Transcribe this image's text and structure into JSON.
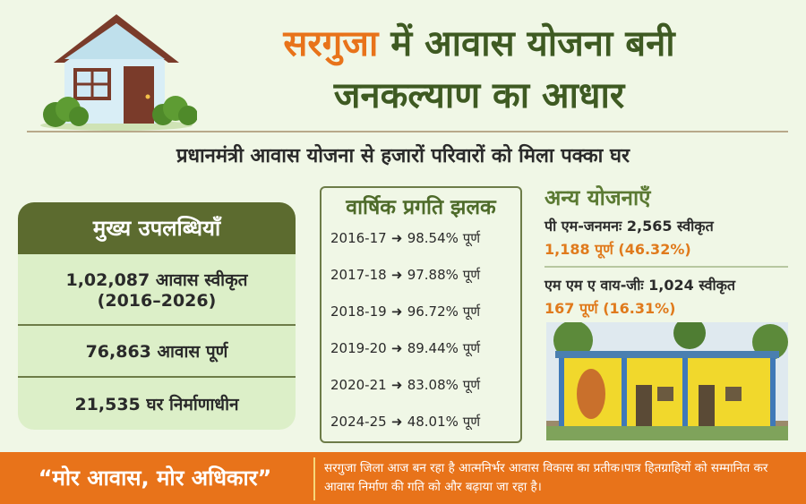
{
  "header": {
    "title_highlight": "सरगुजा",
    "title_line1_rest": " में आवास योजना बनी",
    "title_line2": "जनकल्याण का आधार",
    "subtitle": "प्रधानमंत्री आवास योजना से हजारों परिवारों को मिला पक्का घर"
  },
  "achievements": {
    "heading": "मुख्य उपलब्धियाँ",
    "items": [
      {
        "line1": "1,02,087 आवास स्वीकृत",
        "line2": "(2016–2026)"
      },
      {
        "line1": "76,863 आवास पूर्ण"
      },
      {
        "line1": "21,535 घर निर्माणाधीन"
      }
    ]
  },
  "progress": {
    "heading": "वार्षिक प्रगति झलक",
    "rows": [
      {
        "year": "2016-17",
        "pct": "98.54%",
        "label": "पूर्ण"
      },
      {
        "year": "2017-18",
        "pct": "97.88%",
        "label": "पूर्ण"
      },
      {
        "year": "2018-19",
        "pct": "96.72%",
        "label": "पूर्ण"
      },
      {
        "year": "2019-20",
        "pct": "89.44%",
        "label": "पूर्ण"
      },
      {
        "year": "2020-21",
        "pct": "83.08%",
        "label": "पूर्ण"
      },
      {
        "year": "2024-25",
        "pct": "48.01%",
        "label": "पूर्ण"
      }
    ]
  },
  "other_schemes": {
    "heading": "अन्य योजनाएँ",
    "items": [
      {
        "sanctioned": "पी एम-जनमनः 2,565 स्वीकृत",
        "completed": "1,188 पूर्ण (46.32%)"
      },
      {
        "sanctioned": "एम एम ए वाय-जीः 1,024 स्वीकृत",
        "completed": "167 पूर्ण (16.31%)"
      }
    ]
  },
  "footer": {
    "slogan": "“मोर आवास, मोर अधिकार”",
    "message": "सरगुजा जिला आज बन रहा है आत्मनिर्भर आवास विकास का प्रतीक।पात्र हितग्राहियों को सम्मानित कर आवास निर्माण की गति को और बढ़ाया जा रहा है।"
  },
  "colors": {
    "orange": "#e8731a",
    "dark_green": "#3e5a22",
    "olive": "#5c6b2f",
    "background": "#f0f7e6"
  }
}
